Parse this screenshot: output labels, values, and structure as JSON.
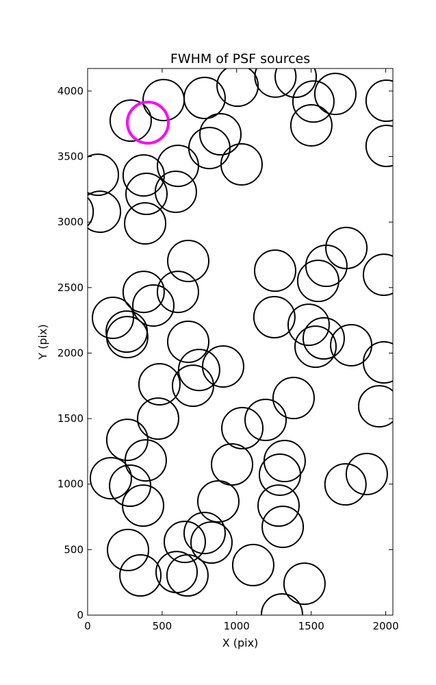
{
  "chart_data": {
    "type": "scatter",
    "title": "FWHM of PSF sources",
    "x_label": "X (pix)",
    "y_label": "Y (pix)",
    "xlim": [
      0,
      2048
    ],
    "ylim": [
      0,
      4172
    ],
    "xticks": [
      0,
      500,
      1000,
      1500,
      2000
    ],
    "yticks": [
      0,
      500,
      1000,
      1500,
      2000,
      2500,
      3000,
      3500,
      4000
    ],
    "series": [
      {
        "color": "#000000",
        "x": [
          289,
          510,
          785,
          1006,
          1260,
          1396,
          1515,
          1662,
          2006,
          1501,
          2006,
          891,
          817,
          1033,
          606,
          69,
          376,
          592,
          395,
          83,
          -100,
          386,
          675,
          1258,
          1736,
          1602,
          1547,
          1988,
          376,
          606,
          441,
          170,
          262,
          266,
          1253,
          1483,
          1584,
          1529,
          1768,
          1988,
          675,
          748,
          909,
          707,
          482,
          1382,
          1956,
          1194,
          1038,
          473,
          266,
          390,
          1322,
          1290,
          969,
          1873,
          1730,
          156,
          285,
          372,
          877,
          1281,
          1309,
          785,
          652,
          831,
          271,
          1111,
          1455,
          1304,
          354,
          597,
          670
        ],
        "y": [
          3774,
          3931,
          3947,
          4041,
          4110,
          4109,
          3920,
          3978,
          3926,
          3738,
          3581,
          3670,
          3565,
          3440,
          3429,
          3361,
          3356,
          3231,
          3215,
          3079,
          3079,
          2990,
          2703,
          2629,
          2802,
          2666,
          2551,
          2598,
          2467,
          2467,
          2363,
          2269,
          2164,
          2122,
          2274,
          2216,
          2112,
          2049,
          2060,
          1929,
          2086,
          1871,
          1898,
          1751,
          1762,
          1657,
          1594,
          1490,
          1427,
          1500,
          1338,
          1181,
          1176,
          1072,
          1150,
          1077,
          998,
          1045,
          988,
          836,
          868,
          836,
          674,
          627,
          559,
          554,
          497,
          382,
          240,
          5,
          303,
          329,
          303
        ]
      },
      {
        "color": "#ff00ff",
        "x": [
          404
        ],
        "y": [
          3759
        ]
      }
    ]
  }
}
